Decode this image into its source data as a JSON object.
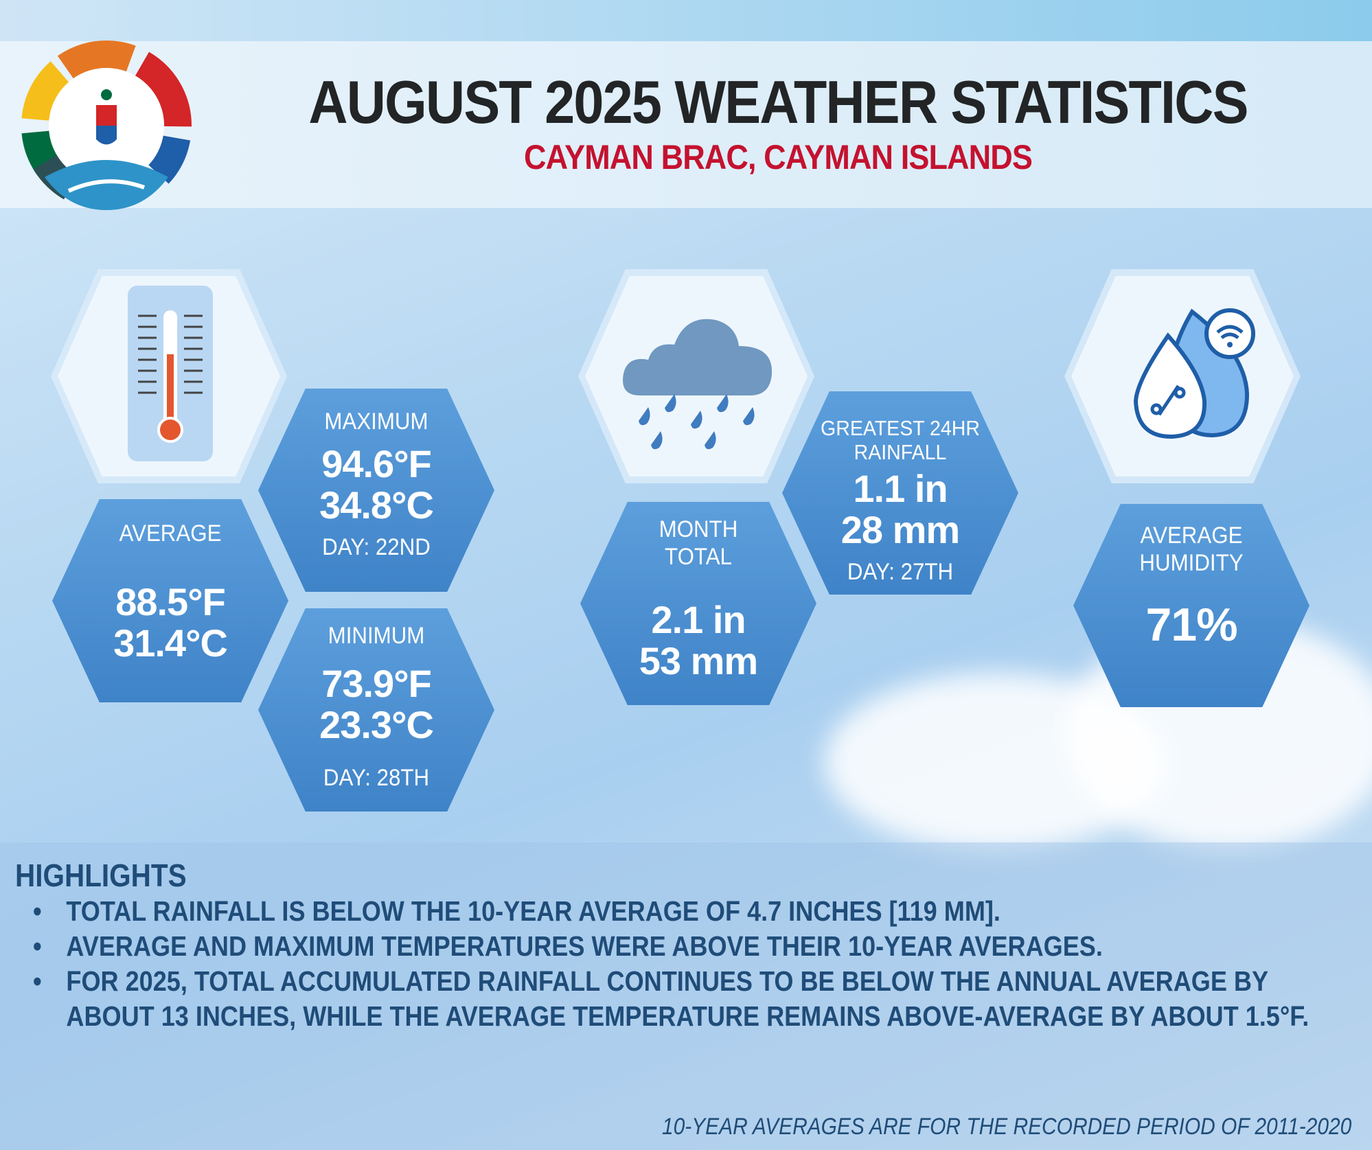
{
  "header": {
    "title": "AUGUST 2025 WEATHER STATISTICS",
    "subtitle": "CAYMAN BRAC, CAYMAN ISLANDS",
    "logo_icon": "cayman-islands-national-weather-service-logo"
  },
  "colors": {
    "title": "#222426",
    "subtitle": "#c4122f",
    "hex_fill": "#4a8fd2",
    "highlight_text": "#1f4c78"
  },
  "temperature": {
    "icon": "thermometer-icon",
    "average": {
      "label": "AVERAGE",
      "f": "88.5°F",
      "c": "31.4°C"
    },
    "maximum": {
      "label": "MAXIMUM",
      "f": "94.6°F",
      "c": "34.8°C",
      "day": "DAY: 22ND"
    },
    "minimum": {
      "label": "MINIMUM",
      "f": "73.9°F",
      "c": "23.3°C",
      "day": "DAY: 28TH"
    }
  },
  "rainfall": {
    "icon": "rain-cloud-icon",
    "month_total": {
      "label_1": "MONTH",
      "label_2": "TOTAL",
      "in": "2.1 in",
      "mm": "53 mm"
    },
    "greatest_24hr": {
      "label_1": "GREATEST 24HR",
      "label_2": "RAINFALL",
      "in": "1.1 in",
      "mm": "28 mm",
      "day": "DAY: 27TH"
    }
  },
  "humidity": {
    "icon": "humidity-drops-icon",
    "label_1": "AVERAGE",
    "label_2": "HUMIDITY",
    "value": "71%"
  },
  "highlights": {
    "title": "HIGHLIGHTS",
    "items": [
      "TOTAL RAINFALL IS BELOW THE 10-YEAR AVERAGE OF 4.7 INCHES [119 MM].",
      "AVERAGE AND MAXIMUM TEMPERATURES WERE ABOVE THEIR 10-YEAR AVERAGES.",
      "FOR 2025, TOTAL ACCUMULATED RAINFALL CONTINUES TO BE BELOW THE ANNUAL AVERAGE BY ABOUT 13 INCHES, WHILE THE AVERAGE TEMPERATURE REMAINS ABOVE-AVERAGE BY ABOUT 1.5°F."
    ]
  },
  "footnote": "10-YEAR AVERAGES ARE FOR THE RECORDED PERIOD OF 2011-2020"
}
